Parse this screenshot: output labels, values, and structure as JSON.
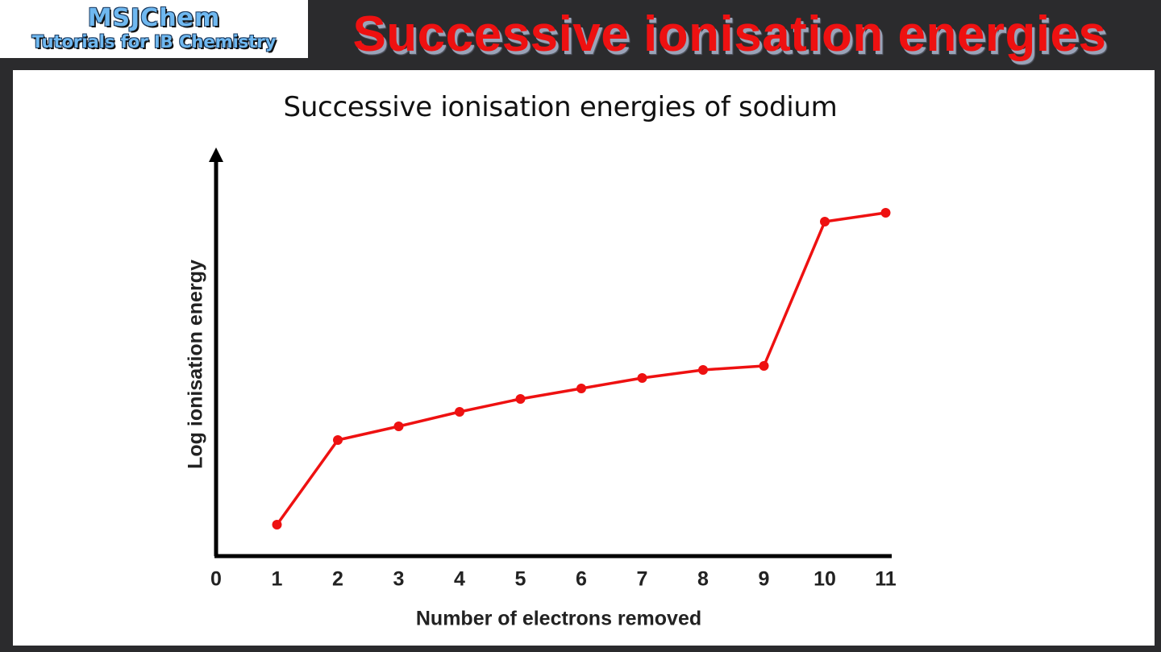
{
  "header": {
    "logo_title": "MSJChem",
    "logo_subtitle": "Tutorials for IB Chemistry",
    "slide_title": "Successive ionisation energies"
  },
  "colors": {
    "background": "#2b2b2d",
    "panel": "#ffffff",
    "series": "#ee1111",
    "axis": "#000000",
    "logo_text": "#6fb8f0",
    "banner_title": "#ee1111"
  },
  "chart_data": {
    "type": "line",
    "title": "Successive ionisation energies of sodium",
    "xlabel": "Number of electrons removed",
    "ylabel": "Log ionisation energy",
    "x_ticks": [
      "0",
      "1",
      "2",
      "3",
      "4",
      "5",
      "6",
      "7",
      "8",
      "9",
      "10",
      "11"
    ],
    "xlim": [
      0,
      11
    ],
    "ylim": [
      0,
      100
    ],
    "y_ticks_shown": false,
    "grid": false,
    "legend": null,
    "markers": true,
    "series": [
      {
        "name": "Sodium",
        "x": [
          1,
          2,
          3,
          4,
          5,
          6,
          7,
          8,
          9,
          10,
          11
        ],
        "values": [
          7.8,
          28.8,
          32.2,
          35.8,
          39.0,
          41.6,
          44.2,
          46.2,
          47.2,
          83.0,
          85.2
        ]
      }
    ]
  }
}
